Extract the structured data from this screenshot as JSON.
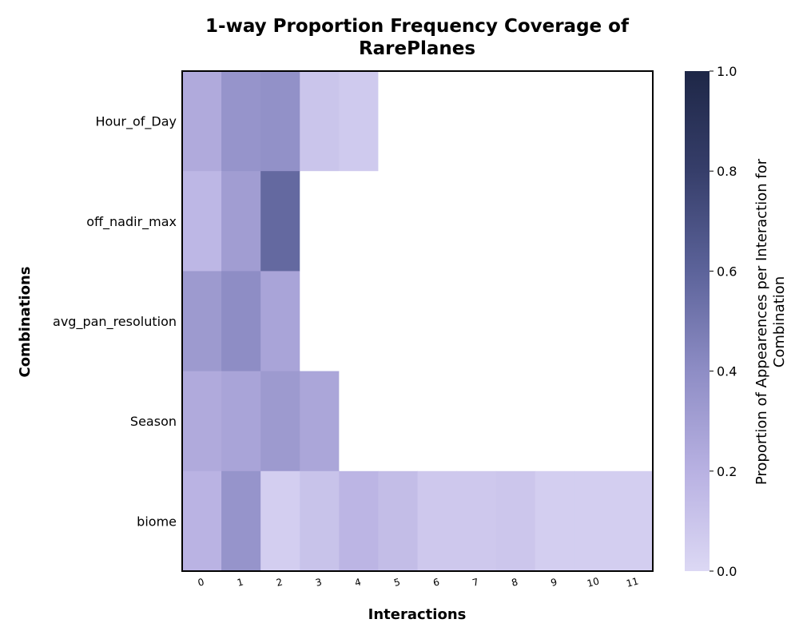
{
  "chart_data": {
    "type": "heatmap",
    "title_lines": [
      "1-way Proportion Frequency Coverage of",
      "RarePlanes"
    ],
    "xlabel": "Interactions",
    "ylabel": "Combinations",
    "x_categories": [
      "0",
      "1",
      "2",
      "3",
      "4",
      "5",
      "6",
      "7",
      "8",
      "9",
      "10",
      "11"
    ],
    "y_categories": [
      "Hour_of_Day",
      "off_nadir_max",
      "avg_pan_resolution",
      "Season",
      "biome"
    ],
    "values": [
      [
        0.24,
        0.36,
        0.38,
        0.1,
        0.07,
        null,
        null,
        null,
        null,
        null,
        null,
        null
      ],
      [
        0.17,
        0.31,
        0.57,
        null,
        null,
        null,
        null,
        null,
        null,
        null,
        null,
        null
      ],
      [
        0.33,
        0.4,
        0.27,
        null,
        null,
        null,
        null,
        null,
        null,
        null,
        null,
        null
      ],
      [
        0.24,
        0.27,
        0.33,
        0.26,
        null,
        null,
        null,
        null,
        null,
        null,
        null,
        null
      ],
      [
        0.19,
        0.36,
        0.05,
        0.11,
        0.18,
        0.14,
        0.08,
        0.08,
        0.09,
        0.05,
        0.05,
        0.05
      ]
    ],
    "colorbar": {
      "label_lines": [
        "Proportion of Appearences per Interaction for",
        "Combination"
      ],
      "range": [
        0.0,
        1.0
      ],
      "ticks": [
        "0.0",
        "0.2",
        "0.4",
        "0.6",
        "0.8",
        "1.0"
      ],
      "colormap": [
        "#dcd8f4",
        "#b8b1e2",
        "#8e8dc5",
        "#5c639a",
        "#363e6a",
        "#1e2747"
      ]
    },
    "empty_cell_color": "#ffffff"
  }
}
